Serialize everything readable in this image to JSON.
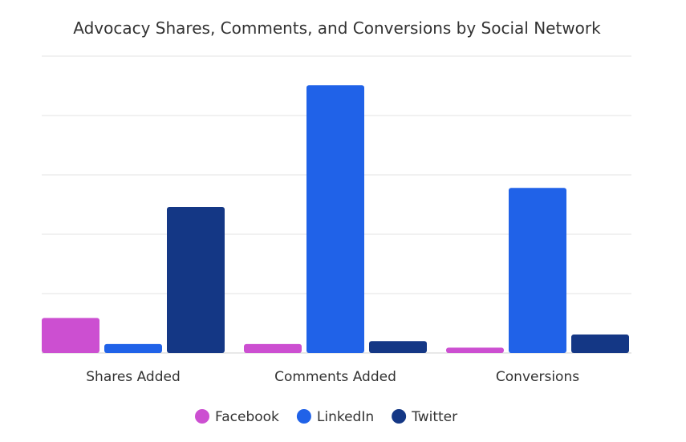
{
  "chart_data": {
    "type": "bar",
    "title": "Advocacy Shares, Comments, and Conversions by Social Network",
    "xlabel": "",
    "ylabel": "",
    "categories": [
      "Shares Added",
      "Comments Added",
      "Conversions"
    ],
    "series": [
      {
        "name": "Facebook",
        "color": "#CC4FD1",
        "values": [
          0.59,
          0.15,
          0.09
        ]
      },
      {
        "name": "LinkedIn",
        "color": "#2062E8",
        "values": [
          0.15,
          4.51,
          2.78
        ]
      },
      {
        "name": "Twitter",
        "color": "#143785",
        "values": [
          2.46,
          0.2,
          0.31
        ]
      }
    ],
    "ylim": [
      0,
      5
    ],
    "y_tick_labels_shown": false,
    "grid": true,
    "legend_position": "bottom"
  }
}
